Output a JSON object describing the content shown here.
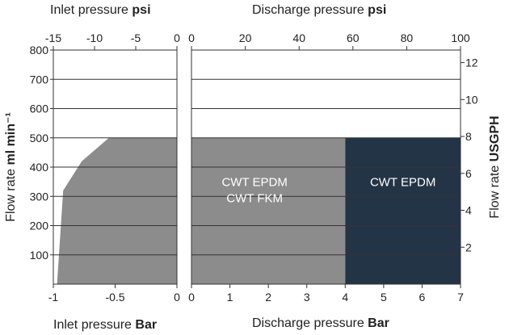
{
  "chart_data": {
    "type": "area",
    "inlet_panel": {
      "title_top": {
        "text": "Inlet pressure ",
        "unit": "psi"
      },
      "title_bottom": {
        "text": "Inlet pressure ",
        "unit": "Bar"
      },
      "psi_ticks": [
        "-15",
        "-10",
        "-5",
        "0"
      ],
      "psi_values": [
        -15,
        -10,
        -5,
        0
      ],
      "bar_ticks": [
        "-1",
        "-0.5",
        "0"
      ],
      "bar_values": [
        -1,
        -0.5,
        0
      ],
      "xlim_bar": [
        -1,
        0
      ],
      "curve": [
        {
          "x": -0.97,
          "y": 0
        },
        {
          "x": -0.92,
          "y": 320
        },
        {
          "x": -0.77,
          "y": 420
        },
        {
          "x": -0.55,
          "y": 500
        },
        {
          "x": 0,
          "y": 500
        }
      ]
    },
    "discharge_panel": {
      "title_top": {
        "text": "Discharge pressure ",
        "unit": "psi"
      },
      "title_bottom": {
        "text": "Discharge pressure ",
        "unit": "Bar"
      },
      "psi_ticks": [
        "0",
        "20",
        "40",
        "60",
        "80",
        "100"
      ],
      "psi_values": [
        0,
        20,
        40,
        60,
        80,
        100
      ],
      "bar_ticks": [
        "0",
        "1",
        "2",
        "3",
        "4",
        "5",
        "6",
        "7"
      ],
      "bar_values": [
        0,
        1,
        2,
        3,
        4,
        5,
        6,
        7
      ],
      "xlim_bar": [
        0,
        7
      ],
      "regions": [
        {
          "labels": [
            "CWT EPDM",
            "CWT FKM"
          ],
          "x_start": 0,
          "x_end": 4,
          "y_max": 500,
          "color": "#8c8c8c"
        },
        {
          "labels": [
            "CWT EPDM"
          ],
          "x_start": 4,
          "x_end": 7,
          "y_max": 500,
          "color": "#243447"
        }
      ]
    },
    "y_left": {
      "label": "Flow rate ",
      "unit": "ml min⁻¹",
      "ticks": [
        "100",
        "200",
        "300",
        "400",
        "500",
        "600",
        "700",
        "800"
      ],
      "values": [
        100,
        200,
        300,
        400,
        500,
        600,
        700,
        800
      ],
      "ylim": [
        0,
        800
      ]
    },
    "y_right": {
      "label": "Flow rate ",
      "unit": "USGPH",
      "ticks": [
        "2",
        "4",
        "6",
        "8",
        "10",
        "12"
      ],
      "values": [
        2,
        4,
        6,
        8,
        10,
        12
      ]
    },
    "grid": true,
    "colors": {
      "fill_grey": "#8c8c8c",
      "fill_dark": "#243447",
      "grid": "#333333"
    }
  }
}
